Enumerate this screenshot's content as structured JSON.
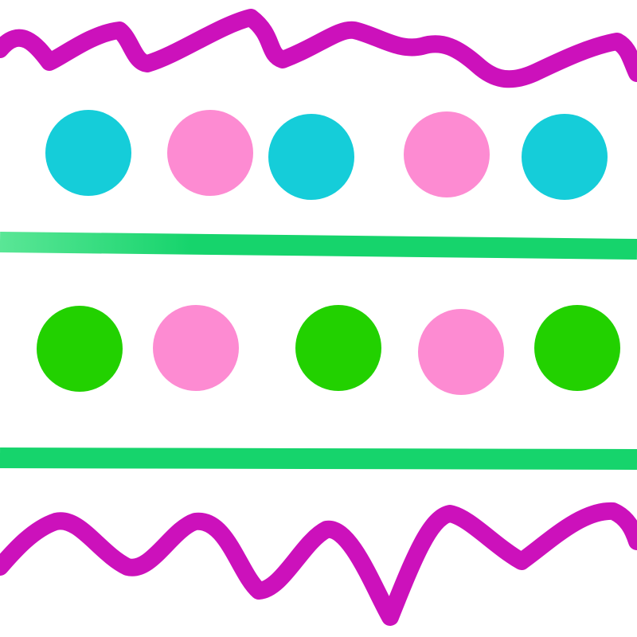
{
  "colors": {
    "background": "#ffffff",
    "zigzag": "#cc11bb",
    "stripe": "#16d46c",
    "stripe_highlight": "#5ae696",
    "cyan_dot": "#15cdd9",
    "pink_dot": "#fd8bd2",
    "green_dot": "#22d100"
  },
  "shapes": {
    "top_zigzag": "wavy-line",
    "top_stripe": "straight-line",
    "bottom_stripe": "straight-line",
    "bottom_zigzag": "wavy-line",
    "dot_row_1": [
      "cyan_dot",
      "pink_dot",
      "cyan_dot",
      "pink_dot",
      "cyan_dot"
    ],
    "dot_row_2": [
      "green_dot",
      "pink_dot",
      "green_dot",
      "pink_dot",
      "green_dot"
    ]
  }
}
